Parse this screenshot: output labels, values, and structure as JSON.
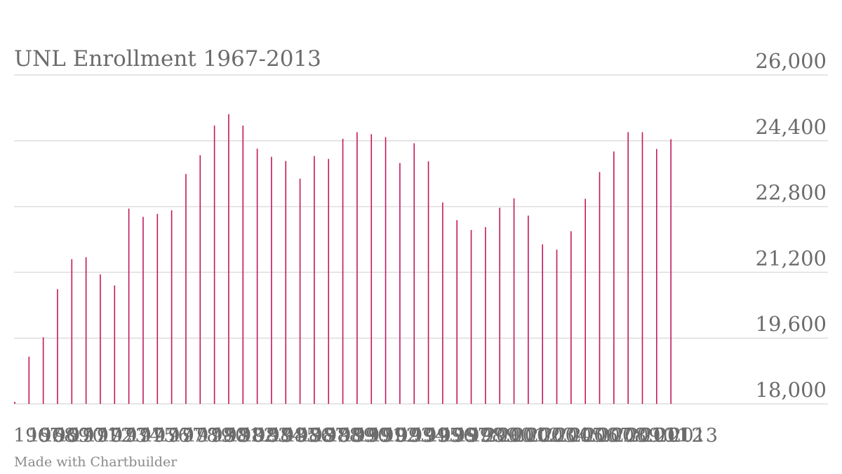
{
  "chart_data": {
    "type": "bar",
    "title": "UNL Enrollment 1967-2013",
    "xlabel": "",
    "ylabel": "",
    "ylim": [
      18000,
      26000
    ],
    "yticks": [
      "18,000",
      "19,600",
      "21,200",
      "22,800",
      "24,400",
      "26,000"
    ],
    "ytick_values": [
      18000,
      19600,
      21200,
      22800,
      24400,
      26000
    ],
    "grid": true,
    "bar_color": "#c2185b",
    "categories": [
      "1967",
      "1968",
      "1969",
      "1970",
      "1971",
      "1972",
      "1973",
      "1974",
      "1975",
      "1976",
      "1977",
      "1978",
      "1979",
      "1980",
      "1981",
      "1982",
      "1983",
      "1984",
      "1985",
      "1986",
      "1987",
      "1988",
      "1989",
      "1990",
      "1991",
      "1992",
      "1993",
      "1994",
      "1995",
      "1996",
      "1997",
      "1998",
      "1999",
      "2000",
      "2001",
      "2002",
      "2003",
      "2004",
      "2005",
      "2006",
      "2007",
      "2008",
      "2009",
      "2010",
      "2011",
      "2012",
      "2013"
    ],
    "values": [
      18050,
      19150,
      19620,
      20790,
      21520,
      21570,
      21150,
      20880,
      22750,
      22550,
      22620,
      22710,
      23590,
      24050,
      24770,
      25050,
      24770,
      24210,
      24010,
      23910,
      23480,
      24030,
      23960,
      24450,
      24610,
      24560,
      24490,
      23860,
      24340,
      23900,
      22900,
      22470,
      22230,
      22300,
      22770,
      23000,
      22580,
      21880,
      21750,
      22200,
      22990,
      23640,
      24140,
      24610,
      24610,
      24200,
      24440
    ]
  },
  "credit": "Made with Chartbuilder"
}
